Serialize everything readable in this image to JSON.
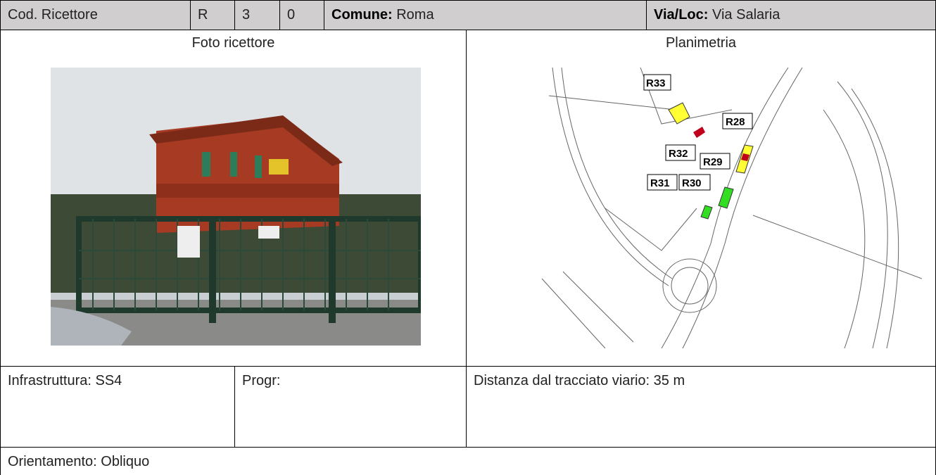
{
  "header": {
    "cod_label": "Cod. Ricettore",
    "code": [
      "R",
      "3",
      "0"
    ],
    "comune_label": "Comune:",
    "comune": "Roma",
    "via_label": "Via/Loc:",
    "via": "Via Salaria"
  },
  "photo": {
    "title": "Foto ricettore"
  },
  "map": {
    "title": "Planimetria",
    "labels": [
      "R33",
      "R28",
      "R32",
      "R29",
      "R31",
      "R30"
    ]
  },
  "info": {
    "infrastruttura": "Infrastruttura: SS4",
    "progr": "Progr:",
    "distanza": "Distanza dal tracciato viario: 35 m",
    "orientamento": "Orientamento: Obliquo"
  }
}
